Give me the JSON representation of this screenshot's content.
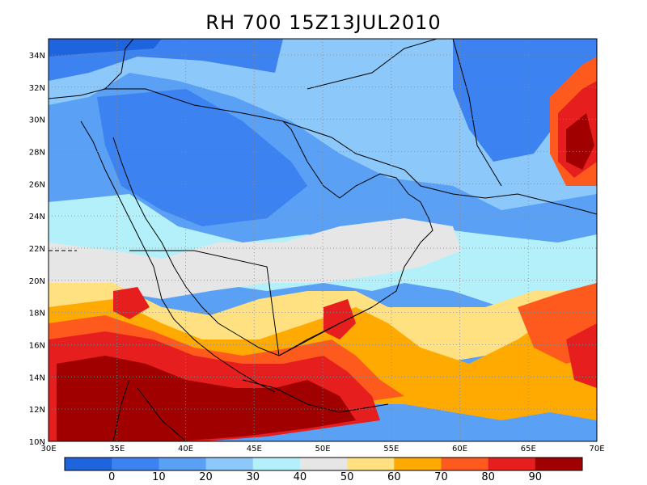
{
  "title": "RH 700  15Z13JUL2010",
  "map": {
    "lon_range": [
      30,
      70
    ],
    "lat_range": [
      10,
      35
    ],
    "lon_ticks": [
      "30E",
      "35E",
      "40E",
      "45E",
      "50E",
      "55E",
      "60E",
      "65E",
      "70E"
    ],
    "lat_ticks": [
      "10N",
      "12N",
      "14N",
      "16N",
      "18N",
      "20N",
      "22N",
      "24N",
      "26N",
      "28N",
      "30N",
      "32N",
      "34N"
    ],
    "grid": "dotted"
  },
  "colorbar": {
    "colors": [
      "#1e64dc",
      "#3c82f0",
      "#5aa0f5",
      "#8cc8fa",
      "#b4f0fa",
      "#e6e6e6",
      "#ffe182",
      "#ffaa00",
      "#ff5a1e",
      "#e61e1e",
      "#a00000"
    ],
    "labels": [
      "0",
      "10",
      "20",
      "30",
      "40",
      "50",
      "60",
      "70",
      "80",
      "90"
    ]
  },
  "fields": {
    "description_colors": {
      "very_low": "#1e64dc",
      "low": "#3c82f0",
      "mid_low": "#5aa0f5",
      "light_blue": "#8cc8fa",
      "cyan": "#b4f0fa",
      "gray": "#e6e6e6",
      "yellow": "#ffe182",
      "orange": "#ffaa00",
      "red_orange": "#ff5a1e",
      "red": "#e61e1e",
      "dark_red": "#a00000"
    }
  }
}
